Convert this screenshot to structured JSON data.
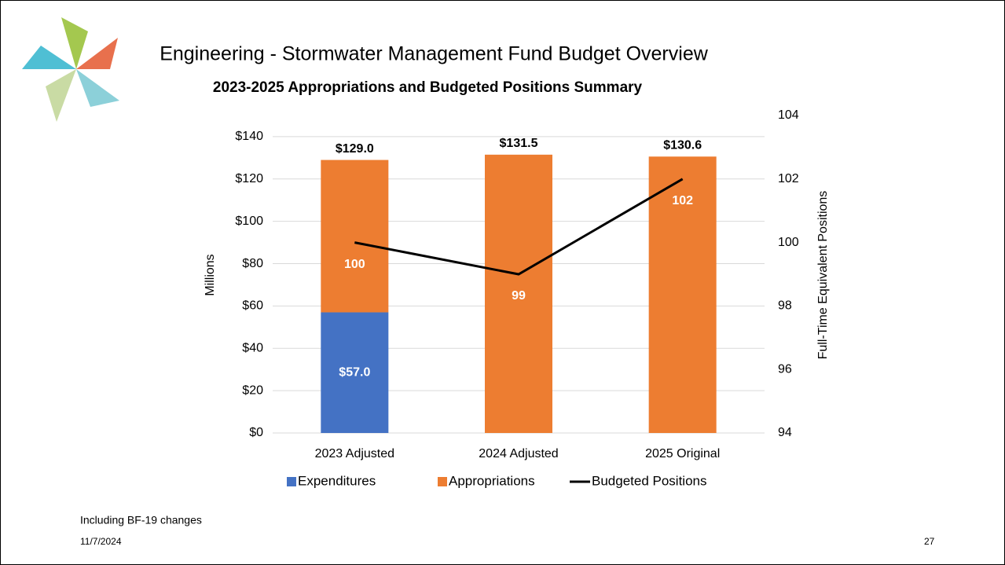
{
  "chart_data": {
    "type": "bar",
    "stacked": true,
    "title": "Engineering - Stormwater Management Fund Budget Overview",
    "subtitle": "2023-2025 Appropriations and Budgeted Positions Summary",
    "ylabel": "Millions",
    "y2label": "Full-Time Equivalent Positions",
    "categories": [
      "2023 Adjusted",
      "2024 Adjusted",
      "2025 Original"
    ],
    "series": [
      {
        "name": "Expenditures",
        "type": "bar",
        "color": "#4472c4",
        "values": [
          57.0,
          null,
          null
        ],
        "value_labels": [
          "$57.0",
          null,
          null
        ]
      },
      {
        "name": "Appropriations",
        "type": "bar",
        "color": "#ed7d31",
        "values": [
          72.0,
          131.5,
          130.6
        ]
      },
      {
        "name": "Budgeted Positions",
        "type": "line",
        "axis": "y2",
        "color": "#000000",
        "values": [
          100,
          99,
          102
        ]
      }
    ],
    "totals": [
      129.0,
      131.5,
      130.6
    ],
    "total_labels": [
      "$129.0",
      "$131.5",
      "$130.6"
    ],
    "ylim": [
      0,
      150
    ],
    "yticks": [
      {
        "value": 0,
        "label": "$0"
      },
      {
        "value": 20,
        "label": "$20"
      },
      {
        "value": 40,
        "label": "$40"
      },
      {
        "value": 60,
        "label": "$60"
      },
      {
        "value": 80,
        "label": "$80"
      },
      {
        "value": 100,
        "label": "$100"
      },
      {
        "value": 120,
        "label": "$120"
      },
      {
        "value": 140,
        "label": "$140"
      }
    ],
    "y2lim": [
      94,
      104
    ],
    "y2ticks": [
      94,
      96,
      98,
      100,
      102,
      104
    ],
    "grid": true,
    "legend": "bottom"
  },
  "slide": {
    "footnote": "Including BF-19 changes",
    "date": "11/7/2024",
    "page_number": "27"
  }
}
